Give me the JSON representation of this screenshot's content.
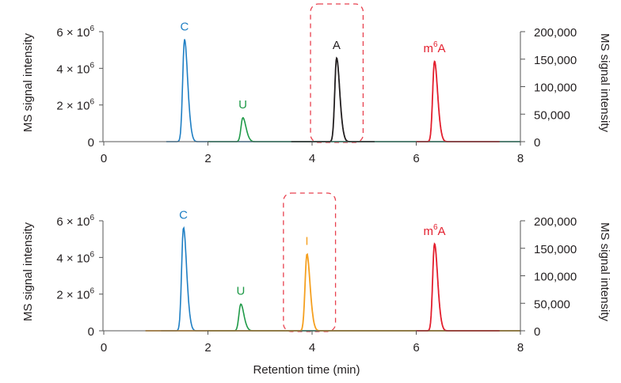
{
  "chart_data": [
    {
      "type": "line",
      "xlabel": "",
      "ylabel_left": "MS signal intensity",
      "ylabel_right": "MS signal intensity",
      "xlim": [
        0,
        8
      ],
      "ylim_left": [
        0,
        6000000
      ],
      "ylim_right": [
        0,
        200000
      ],
      "x_ticks": [
        "0",
        "2",
        "4",
        "6",
        "8"
      ],
      "y_ticks_left": [
        {
          "base": "0",
          "exp": ""
        },
        {
          "base": "2 × 10",
          "exp": "6"
        },
        {
          "base": "4 × 10",
          "exp": "6"
        },
        {
          "base": "6 × 10",
          "exp": "6"
        }
      ],
      "y_ticks_right": [
        "0",
        "50,000",
        "100,000",
        "150,000",
        "200,000"
      ],
      "grid": false,
      "highlight_box_x": [
        3.97,
        4.98
      ],
      "series": [
        {
          "name": "C",
          "label_base": "C",
          "label_exp": "",
          "color": "#1f7fc4",
          "axis": "left",
          "rt": 1.55,
          "height": 5550000,
          "range": [
            1.2,
            8.0
          ]
        },
        {
          "name": "U",
          "label_base": "U",
          "label_exp": "",
          "color": "#1f9a48",
          "axis": "left",
          "rt": 2.67,
          "height": 1300000,
          "range": [
            2.0,
            8.0
          ]
        },
        {
          "name": "A",
          "label_base": "A",
          "label_exp": "",
          "color": "#231f20",
          "axis": "right",
          "rt": 4.47,
          "height": 151000,
          "range": [
            3.6,
            5.2
          ]
        },
        {
          "name": "m6A",
          "label_base": "mA",
          "label_exp": "6",
          "color": "#e31e2d",
          "axis": "right",
          "rt": 6.35,
          "height": 145000,
          "range": [
            6.0,
            7.6
          ]
        }
      ]
    },
    {
      "type": "line",
      "xlabel": "Retention time (min)",
      "ylabel_left": "MS signal intensity",
      "ylabel_right": "MS signal intensity",
      "xlim": [
        0,
        8
      ],
      "ylim_left": [
        0,
        6000000
      ],
      "ylim_right": [
        0,
        200000
      ],
      "x_ticks": [
        "0",
        "2",
        "4",
        "6",
        "8"
      ],
      "y_ticks_left": [
        {
          "base": "0",
          "exp": ""
        },
        {
          "base": "2 × 10",
          "exp": "6"
        },
        {
          "base": "4 × 10",
          "exp": "6"
        },
        {
          "base": "6 × 10",
          "exp": "6"
        }
      ],
      "y_ticks_right": [
        "0",
        "50,000",
        "100,000",
        "150,000",
        "200,000"
      ],
      "grid": false,
      "highlight_box_x": [
        3.45,
        4.45
      ],
      "series": [
        {
          "name": "C",
          "label_base": "C",
          "label_exp": "",
          "color": "#1f7fc4",
          "axis": "left",
          "rt": 1.53,
          "height": 5600000,
          "range": [
            1.1,
            8.0
          ]
        },
        {
          "name": "U",
          "label_base": "U",
          "label_exp": "",
          "color": "#1f9a48",
          "axis": "left",
          "rt": 2.63,
          "height": 1450000,
          "range": [
            2.0,
            8.0
          ]
        },
        {
          "name": "I",
          "label_base": "I",
          "label_exp": "",
          "color": "#f5a020",
          "axis": "right",
          "rt": 3.9,
          "height": 139000,
          "range": [
            0.8,
            8.0
          ]
        },
        {
          "name": "m6A",
          "label_base": "mA",
          "label_exp": "6",
          "color": "#e31e2d",
          "axis": "right",
          "rt": 6.35,
          "height": 157000,
          "range": [
            6.0,
            7.6
          ]
        }
      ]
    }
  ]
}
